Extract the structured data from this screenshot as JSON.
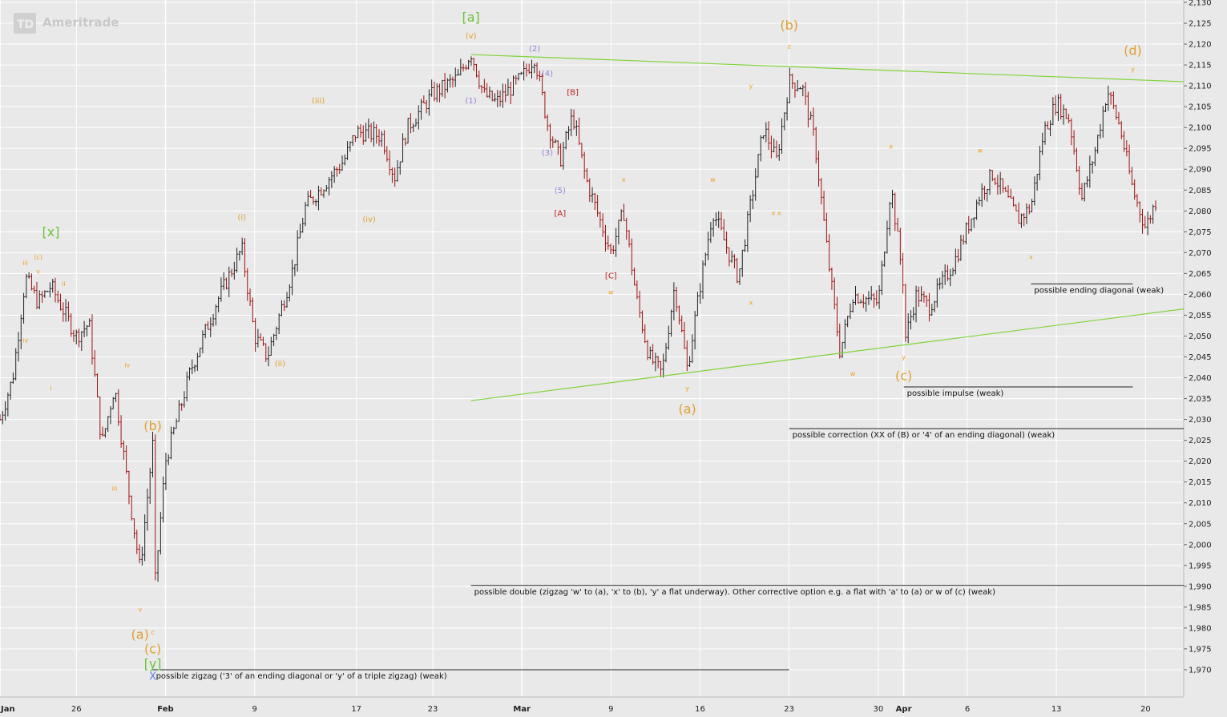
{
  "branding": {
    "logo_badge": "TD",
    "logo_text": "Ameritrade"
  },
  "colors": {
    "background": "#e9e9e9",
    "grid": "#ffffff",
    "candle": "#222222",
    "candle_down": "#a01010",
    "trendline": "#7fd43a",
    "primary_label": "#e0a030",
    "minor_label": "#f0a020",
    "green_label": "#6cc33a",
    "purple_label": "#9a7fd6",
    "red_label": "#c01818",
    "blue_label": "#5a7fe0",
    "annotation_line": "#222222"
  },
  "chart_data": {
    "type": "candlestick",
    "title": "",
    "xlabel": "",
    "ylabel": "",
    "ylim": [
      1965,
      2130
    ],
    "x_range": [
      "2015-01-20",
      "2015-04-23"
    ],
    "grid": true,
    "y_axis_position": "right",
    "y_ticks": [
      1970,
      1975,
      1980,
      1985,
      1990,
      1995,
      2000,
      2005,
      2010,
      2015,
      2020,
      2025,
      2030,
      2035,
      2040,
      2045,
      2050,
      2055,
      2060,
      2065,
      2070,
      2075,
      2080,
      2085,
      2090,
      2095,
      2100,
      2105,
      2110,
      2115,
      2120,
      2125,
      2130
    ],
    "y_tick_labels": [
      "1,970",
      "1,975",
      "1,980",
      "1,985",
      "1,990",
      "1,995",
      "2,000",
      "2,005",
      "2,010",
      "2,015",
      "2,020",
      "2,025",
      "2,030",
      "2,035",
      "2,040",
      "2,045",
      "2,050",
      "2,055",
      "2,060",
      "2,065",
      "2,070",
      "2,075",
      "2,080",
      "2,085",
      "2,090",
      "2,095",
      "2,100",
      "2,105",
      "2,110",
      "2,115",
      "2,120",
      "2,125",
      "2,130"
    ],
    "x_ticks": [
      {
        "date": "2015-01-20",
        "label": "Jan",
        "major": true
      },
      {
        "date": "2015-01-26",
        "label": "26",
        "major": false
      },
      {
        "date": "2015-02-02",
        "label": "Feb",
        "major": true
      },
      {
        "date": "2015-02-09",
        "label": "9",
        "major": false
      },
      {
        "date": "2015-02-17",
        "label": "17",
        "major": false
      },
      {
        "date": "2015-02-23",
        "label": "23",
        "major": false
      },
      {
        "date": "2015-03-02",
        "label": "Mar",
        "major": true
      },
      {
        "date": "2015-03-09",
        "label": "9",
        "major": false
      },
      {
        "date": "2015-03-16",
        "label": "16",
        "major": false
      },
      {
        "date": "2015-03-23",
        "label": "23",
        "major": false
      },
      {
        "date": "2015-03-30",
        "label": "30",
        "major": false
      },
      {
        "date": "2015-04-01",
        "label": "Apr",
        "major": true
      },
      {
        "date": "2015-04-06",
        "label": "6",
        "major": false
      },
      {
        "date": "2015-04-13",
        "label": "13",
        "major": false
      },
      {
        "date": "2015-04-20",
        "label": "20",
        "major": false
      }
    ],
    "price_path": [
      [
        "2015-01-20",
        2030
      ],
      [
        "2015-01-21",
        2040
      ],
      [
        "2015-01-22",
        2064
      ],
      [
        "2015-01-23",
        2058
      ],
      [
        "2015-01-24",
        2062
      ],
      [
        "2015-01-26",
        2050
      ],
      [
        "2015-01-27",
        2053
      ],
      [
        "2015-01-28",
        2024
      ],
      [
        "2015-01-29",
        2038
      ],
      [
        "2015-01-30",
        2015
      ],
      [
        "2015-01-31",
        1994
      ],
      [
        "2015-02-01",
        2024
      ],
      [
        "2015-02-01",
        1984
      ],
      [
        "2015-02-02",
        2020
      ],
      [
        "2015-02-04",
        2042
      ],
      [
        "2015-02-06",
        2058
      ],
      [
        "2015-02-08",
        2071
      ],
      [
        "2015-02-09",
        2050
      ],
      [
        "2015-02-10",
        2045
      ],
      [
        "2015-02-12",
        2066
      ],
      [
        "2015-02-13",
        2081
      ],
      [
        "2015-02-16",
        2092
      ],
      [
        "2015-02-17",
        2099
      ],
      [
        "2015-02-19",
        2098
      ],
      [
        "2015-02-20",
        2088
      ],
      [
        "2015-02-21",
        2100
      ],
      [
        "2015-02-23",
        2108
      ],
      [
        "2015-02-25",
        2112
      ],
      [
        "2015-02-26",
        2118
      ],
      [
        "2015-02-27",
        2108
      ],
      [
        "2015-02-28",
        2106
      ],
      [
        "2015-03-02",
        2112
      ],
      [
        "2015-03-03",
        2117
      ],
      [
        "2015-03-04",
        2101
      ],
      [
        "2015-03-05",
        2092
      ],
      [
        "2015-03-06",
        2103
      ],
      [
        "2015-03-07",
        2088
      ],
      [
        "2015-03-09",
        2070
      ],
      [
        "2015-03-10",
        2080
      ],
      [
        "2015-03-11",
        2059
      ],
      [
        "2015-03-12",
        2045
      ],
      [
        "2015-03-13",
        2041
      ],
      [
        "2015-03-14",
        2062
      ],
      [
        "2015-03-15",
        2042
      ],
      [
        "2015-03-16",
        2062
      ],
      [
        "2015-03-17",
        2080
      ],
      [
        "2015-03-19",
        2064
      ],
      [
        "2015-03-21",
        2100
      ],
      [
        "2015-03-22",
        2092
      ],
      [
        "2015-03-23",
        2111
      ],
      [
        "2015-03-24",
        2110
      ],
      [
        "2015-03-25",
        2097
      ],
      [
        "2015-03-26",
        2070
      ],
      [
        "2015-03-27",
        2046
      ],
      [
        "2015-03-28",
        2060
      ],
      [
        "2015-03-30",
        2058
      ],
      [
        "2015-03-31",
        2086
      ],
      [
        "2015-04-01",
        2062
      ],
      [
        "2015-04-01",
        2048
      ],
      [
        "2015-04-02",
        2060
      ],
      [
        "2015-04-03",
        2057
      ],
      [
        "2015-04-05",
        2068
      ],
      [
        "2015-04-07",
        2084
      ],
      [
        "2015-04-08",
        2089
      ],
      [
        "2015-04-10",
        2078
      ],
      [
        "2015-04-11",
        2081
      ],
      [
        "2015-04-12",
        2099
      ],
      [
        "2015-04-13",
        2106
      ],
      [
        "2015-04-14",
        2102
      ],
      [
        "2015-04-15",
        2083
      ],
      [
        "2015-04-16",
        2094
      ],
      [
        "2015-04-17",
        2109
      ],
      [
        "2015-04-18",
        2100
      ],
      [
        "2015-04-19",
        2085
      ],
      [
        "2015-04-20",
        2076
      ],
      [
        "2015-04-21",
        2084
      ]
    ],
    "trendlines": [
      {
        "from": [
          "2015-02-26",
          2117.5
        ],
        "to": [
          "2015-04-23",
          2111
        ]
      },
      {
        "from": [
          "2015-02-26",
          2034.5
        ],
        "to": [
          "2015-04-23",
          2056.5
        ]
      }
    ],
    "wave_labels": [
      {
        "text": "[a]",
        "date": "2015-02-26",
        "price": 2126.5,
        "color": "green",
        "size": "lg"
      },
      {
        "text": "(v)",
        "date": "2015-02-26",
        "price": 2122,
        "color": "primary",
        "size": "sm"
      },
      {
        "text": "(2)",
        "date": "2015-03-03",
        "price": 2119,
        "color": "purple",
        "size": "sm"
      },
      {
        "text": "(4)",
        "date": "2015-03-04",
        "price": 2113,
        "color": "purple",
        "size": "sm"
      },
      {
        "text": "[B]",
        "date": "2015-03-06",
        "price": 2108.5,
        "color": "red",
        "size": "sm"
      },
      {
        "text": "(1)",
        "date": "2015-02-26",
        "price": 2106.5,
        "color": "purple",
        "size": "sm"
      },
      {
        "text": "(3)",
        "date": "2015-03-04",
        "price": 2094,
        "color": "purple",
        "size": "sm"
      },
      {
        "text": "(5)",
        "date": "2015-03-05",
        "price": 2085,
        "color": "purple",
        "size": "sm"
      },
      {
        "text": "[A]",
        "date": "2015-03-05",
        "price": 2079.5,
        "color": "red",
        "size": "sm"
      },
      {
        "text": "[C]",
        "date": "2015-03-09",
        "price": 2064.5,
        "color": "red",
        "size": "sm"
      },
      {
        "text": "w",
        "date": "2015-03-09",
        "price": 2060.5,
        "color": "minor",
        "size": "xs"
      },
      {
        "text": "x",
        "date": "2015-03-10",
        "price": 2087.5,
        "color": "minor",
        "size": "xs"
      },
      {
        "text": "(iii)",
        "date": "2015-02-14",
        "price": 2106.5,
        "color": "primary",
        "size": "sm"
      },
      {
        "text": "(i)",
        "date": "2015-02-08",
        "price": 2078.5,
        "color": "primary",
        "size": "sm"
      },
      {
        "text": "(iv)",
        "date": "2015-02-18",
        "price": 2078,
        "color": "primary",
        "size": "sm"
      },
      {
        "text": "(ii)",
        "date": "2015-02-11",
        "price": 2043.5,
        "color": "primary",
        "size": "sm"
      },
      {
        "text": "(b)",
        "date": "2015-03-23",
        "price": 2124.5,
        "color": "primary",
        "size": "lg"
      },
      {
        "text": "z",
        "date": "2015-03-23",
        "price": 2119.5,
        "color": "minor",
        "size": "xs"
      },
      {
        "text": "y",
        "date": "2015-03-20",
        "price": 2110,
        "color": "minor",
        "size": "xs"
      },
      {
        "text": "w",
        "date": "2015-03-17",
        "price": 2087.5,
        "color": "minor",
        "size": "xs"
      },
      {
        "text": "x x",
        "date": "2015-03-22",
        "price": 2079.5,
        "color": "minor",
        "size": "xs"
      },
      {
        "text": "x",
        "date": "2015-03-20",
        "price": 2058,
        "color": "minor",
        "size": "xs"
      },
      {
        "text": "y",
        "date": "2015-03-15",
        "price": 2037.5,
        "color": "minor",
        "size": "xs"
      },
      {
        "text": "(a)",
        "date": "2015-03-15",
        "price": 2032.5,
        "color": "primary",
        "size": "lg"
      },
      {
        "text": "x",
        "date": "2015-03-31",
        "price": 2095.5,
        "color": "minor",
        "size": "xs"
      },
      {
        "text": "w",
        "date": "2015-03-28",
        "price": 2041,
        "color": "minor",
        "size": "xs"
      },
      {
        "text": "w",
        "date": "2015-04-07",
        "price": 2094.5,
        "color": "minor",
        "size": "xs"
      },
      {
        "text": "x",
        "date": "2015-04-11",
        "price": 2069,
        "color": "minor",
        "size": "xs"
      },
      {
        "text": "y",
        "date": "2015-04-01",
        "price": 2045,
        "color": "minor",
        "size": "xs"
      },
      {
        "text": "(c)",
        "date": "2015-04-01",
        "price": 2040.5,
        "color": "primary",
        "size": "lg"
      },
      {
        "text": "(d)",
        "date": "2015-04-19",
        "price": 2118.5,
        "color": "primary",
        "size": "lg"
      },
      {
        "text": "y",
        "date": "2015-04-19",
        "price": 2114,
        "color": "minor",
        "size": "xs"
      },
      {
        "text": "[x]",
        "date": "2015-01-24",
        "price": 2075,
        "color": "green",
        "size": "lg"
      },
      {
        "text": "iii",
        "date": "2015-01-22",
        "price": 2067.5,
        "color": "minor",
        "size": "xs"
      },
      {
        "text": "(c)",
        "date": "2015-01-23",
        "price": 2069,
        "color": "minor",
        "size": "xs"
      },
      {
        "text": "v",
        "date": "2015-01-23",
        "price": 2065.5,
        "color": "minor",
        "size": "xs"
      },
      {
        "text": "ii",
        "date": "2015-01-25",
        "price": 2062.5,
        "color": "minor",
        "size": "xs"
      },
      {
        "text": "iv",
        "date": "2015-01-22",
        "price": 2049,
        "color": "minor",
        "size": "xs"
      },
      {
        "text": "i",
        "date": "2015-01-24",
        "price": 2037.5,
        "color": "minor",
        "size": "xs"
      },
      {
        "text": "iv",
        "date": "2015-01-30",
        "price": 2043,
        "color": "minor",
        "size": "xs"
      },
      {
        "text": "iii",
        "date": "2015-01-29",
        "price": 2013.5,
        "color": "minor",
        "size": "xs"
      },
      {
        "text": "v",
        "date": "2015-01-31",
        "price": 1984.5,
        "color": "minor",
        "size": "xs"
      },
      {
        "text": "(b)",
        "date": "2015-02-01",
        "price": 2028.5,
        "color": "primary",
        "size": "lg"
      },
      {
        "text": "(a)",
        "date": "2015-01-31",
        "price": 1978.5,
        "color": "primary",
        "size": "lg"
      },
      {
        "text": "c",
        "date": "2015-02-01",
        "price": 1979,
        "color": "minor",
        "size": "xs"
      },
      {
        "text": "(c)",
        "date": "2015-02-01",
        "price": 1975,
        "color": "primary",
        "size": "lg"
      },
      {
        "text": "[y]",
        "date": "2015-02-01",
        "price": 1971.5,
        "color": "green",
        "size": "lg"
      },
      {
        "text": "X",
        "date": "2015-02-01",
        "price": 1968.5,
        "color": "blue",
        "size": "md"
      }
    ],
    "annotations": [
      {
        "text": "possible zigzag ('3' of an ending diagonal or 'y' of a triple zigzag) (weak)",
        "line_from": "2015-02-01",
        "line_to": "2015-03-23",
        "price": 1970
      },
      {
        "text": "possible double (zigzag 'w' to (a), 'x' to (b), 'y' a flat underway).  Other corrective option e.g. a flat with 'a' to (a) or w of (c) (weak)",
        "line_from": "2015-02-26",
        "line_to": "2015-04-23",
        "price": 1990.2
      },
      {
        "text": "possible correction (XX of (B) or '4' of an ending diagonal) (weak)",
        "line_from": "2015-03-23",
        "line_to": "2015-04-23",
        "price": 2027.8
      },
      {
        "text": "possible impulse (weak)",
        "line_from": "2015-04-01",
        "line_to": "2015-04-19",
        "price": 2037.8
      },
      {
        "text": "possible ending diagonal (weak)",
        "line_from": "2015-04-11",
        "line_to": "2015-04-19",
        "price": 2062.5
      }
    ]
  }
}
